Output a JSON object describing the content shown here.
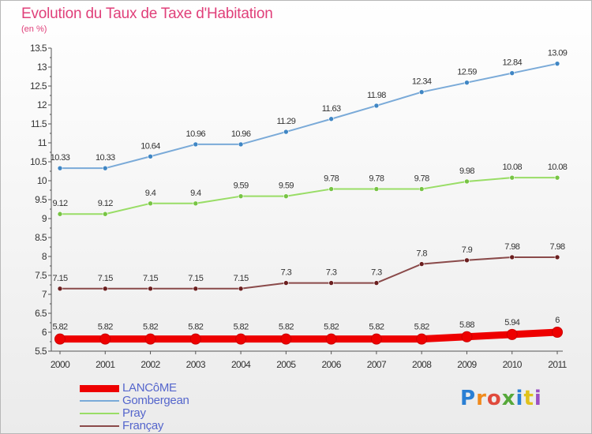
{
  "title": "Evolution du Taux de Taxe d'Habitation",
  "subtitle": "(en %)",
  "logo": {
    "text": "Proxiti",
    "colors": [
      "#2a7fd4",
      "#f08a1c",
      "#e04a3c",
      "#56a83a",
      "#2a7fd4",
      "#e0c21c",
      "#9b4fc4"
    ]
  },
  "chart_data": {
    "type": "line",
    "title": "Evolution du Taux de Taxe d'Habitation",
    "ylabel": "(en %)",
    "xlabel": "",
    "x": [
      "2000",
      "2001",
      "2002",
      "2003",
      "2004",
      "2005",
      "2006",
      "2007",
      "2008",
      "2009",
      "2010",
      "2011"
    ],
    "ylim": [
      5.5,
      13.5
    ],
    "yticks": [
      "5.5",
      "6",
      "6.5",
      "7",
      "7.5",
      "8",
      "8.5",
      "9",
      "9.5",
      "10",
      "10.5",
      "11",
      "11.5",
      "12",
      "12.5",
      "13",
      "13.5"
    ],
    "legend_position": "bottom-left",
    "grid": false,
    "series": [
      {
        "name": "LANCôME",
        "color": "#ee0000",
        "values": [
          5.82,
          5.82,
          5.82,
          5.82,
          5.82,
          5.82,
          5.82,
          5.82,
          5.82,
          5.88,
          5.94,
          6
        ],
        "labels": [
          "5.82",
          "5.82",
          "5.82",
          "5.82",
          "5.82",
          "5.82",
          "5.82",
          "5.82",
          "5.82",
          "5.88",
          "5.94",
          "6"
        ]
      },
      {
        "name": "Gombergean",
        "color": "#7aaad8",
        "marker_color": "#3f86c4",
        "values": [
          10.33,
          10.33,
          10.64,
          10.96,
          10.96,
          11.29,
          11.63,
          11.98,
          12.34,
          12.59,
          12.84,
          13.09
        ],
        "labels": [
          "10.33",
          "10.33",
          "10.64",
          "10.96",
          "10.96",
          "11.29",
          "11.63",
          "11.98",
          "12.34",
          "12.59",
          "12.84",
          "13.09"
        ]
      },
      {
        "name": "Pray",
        "color": "#99dd66",
        "marker_color": "#77c444",
        "values": [
          9.12,
          9.12,
          9.4,
          9.4,
          9.59,
          9.59,
          9.78,
          9.78,
          9.78,
          9.98,
          10.08,
          10.08
        ],
        "labels": [
          "9.12",
          "9.12",
          "9.4",
          "9.4",
          "9.59",
          "9.59",
          "9.78",
          "9.78",
          "9.78",
          "9.98",
          "10.08",
          "10.08"
        ]
      },
      {
        "name": "Françay",
        "color": "#8a4a4a",
        "marker_color": "#6b1f1f",
        "values": [
          7.15,
          7.15,
          7.15,
          7.15,
          7.15,
          7.3,
          7.3,
          7.3,
          7.8,
          7.9,
          7.98,
          7.98
        ],
        "labels": [
          "7.15",
          "7.15",
          "7.15",
          "7.15",
          "7.15",
          "7.3",
          "7.3",
          "7.3",
          "7.8",
          "7.9",
          "7.98",
          "7.98"
        ]
      }
    ]
  }
}
